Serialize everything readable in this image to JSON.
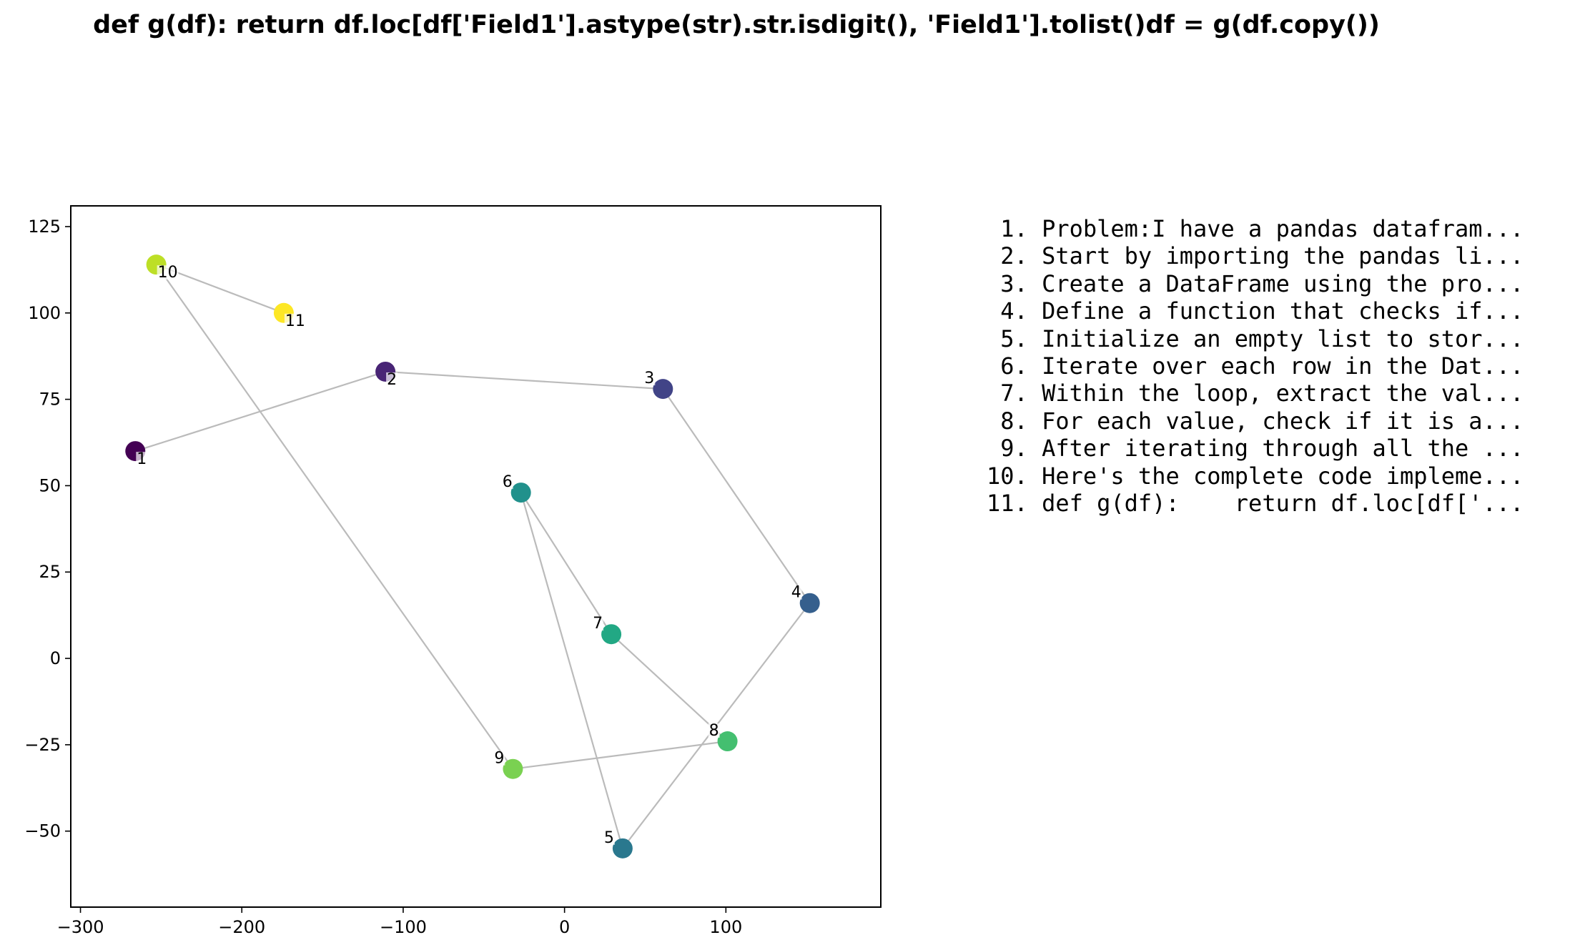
{
  "chart_data": {
    "type": "scatter",
    "title": "def g(df):    return df.loc[df['Field1'].astype(str).str.isdigit(), 'Field1'].tolist()df = g(df.copy())",
    "xlabel": "",
    "ylabel": "",
    "xlim": [
      -306,
      196
    ],
    "ylim": [
      -72,
      131
    ],
    "xticks": [
      -300,
      -200,
      -100,
      0,
      100
    ],
    "yticks": [
      -50,
      -25,
      0,
      25,
      50,
      75,
      100,
      125
    ],
    "grid": false,
    "connect_points_in_order": true,
    "line_color": "#bbbbbb",
    "colormap": "viridis",
    "points": [
      {
        "label": "1",
        "x": -266,
        "y": 60,
        "color": "#440154"
      },
      {
        "label": "2",
        "x": -111,
        "y": 83,
        "color": "#482475"
      },
      {
        "label": "3",
        "x": 61,
        "y": 78,
        "color": "#414487"
      },
      {
        "label": "4",
        "x": 152,
        "y": 16,
        "color": "#355f8d"
      },
      {
        "label": "5",
        "x": 36,
        "y": -55,
        "color": "#2a788e"
      },
      {
        "label": "6",
        "x": -27,
        "y": 48,
        "color": "#21918c"
      },
      {
        "label": "7",
        "x": 29,
        "y": 7,
        "color": "#22a884"
      },
      {
        "label": "8",
        "x": 101,
        "y": -24,
        "color": "#44bf70"
      },
      {
        "label": "9",
        "x": -32,
        "y": -32,
        "color": "#7ad151"
      },
      {
        "label": "10",
        "x": -253,
        "y": 114,
        "color": "#bddf26"
      },
      {
        "label": "11",
        "x": -174,
        "y": 100,
        "color": "#fde725"
      }
    ]
  },
  "steps": [
    {
      "number": "1.",
      "text": "Problem:I have a pandas datafram..."
    },
    {
      "number": "2.",
      "text": "Start by importing the pandas li..."
    },
    {
      "number": "3.",
      "text": "Create a DataFrame using the pro..."
    },
    {
      "number": "4.",
      "text": "Define a function that checks if..."
    },
    {
      "number": "5.",
      "text": "Initialize an empty list to stor..."
    },
    {
      "number": "6.",
      "text": "Iterate over each row in the Dat..."
    },
    {
      "number": "7.",
      "text": "Within the loop, extract the val..."
    },
    {
      "number": "8.",
      "text": "For each value, check if it is a..."
    },
    {
      "number": "9.",
      "text": "After iterating through all the ..."
    },
    {
      "number": "10.",
      "text": "Here's the complete code impleme..."
    },
    {
      "number": "11.",
      "text": "def g(df):    return df.loc[df['..."
    }
  ]
}
